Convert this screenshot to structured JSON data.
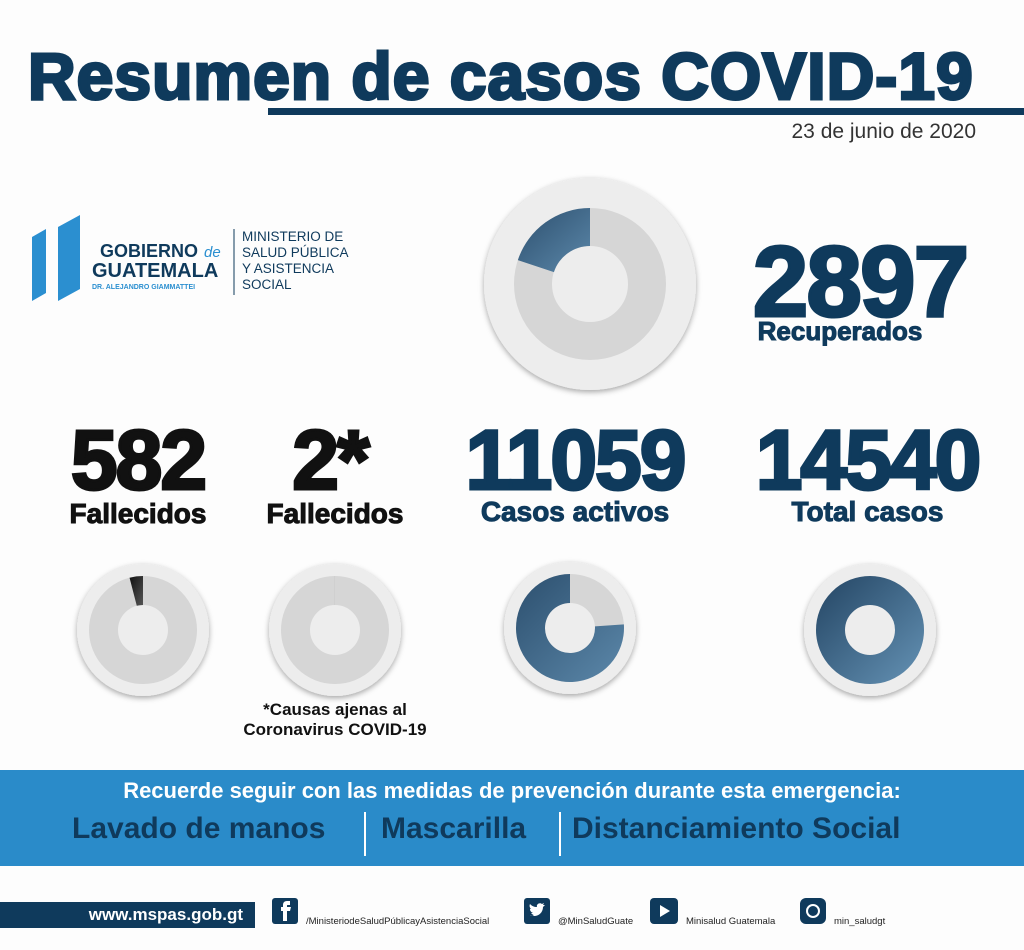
{
  "header": {
    "title": "Resumen de casos COVID-19",
    "date": "23 de junio de 2020"
  },
  "logo": {
    "gobierno": "GOBIERNO",
    "de": "de",
    "guatemala": "GUATEMALA",
    "president": "DR. ALEJANDRO GIAMMATTEI",
    "ministry": [
      "MINISTERIO DE",
      "SALUD PÚBLICA",
      "Y ASISTENCIA",
      "SOCIAL"
    ]
  },
  "stats": [
    {
      "value": 2897,
      "label": "Recuperados"
    },
    {
      "value": 582,
      "label": "Fallecidos"
    },
    {
      "value": 2,
      "value_label": "2*",
      "label": "Fallecidos"
    },
    {
      "value": 11059,
      "label": "Casos activos"
    },
    {
      "value": 14540,
      "label": "Total casos"
    }
  ],
  "footnote": [
    "*Causas ajenas al",
    "Coronavirus COVID-19"
  ],
  "banner": {
    "text": "Recuerde seguir con las medidas de prevención durante esta emergencia:",
    "items": [
      "Lavado de manos",
      "Mascarilla",
      "Distanciamiento Social"
    ]
  },
  "footer": {
    "website": "www.mspas.gob.gt",
    "social": [
      "/MinisteriodeSaludPúblicayAsistenciaSocial",
      "@MinSaludGuate",
      "Minisalud Guatemala",
      "min_saludgt"
    ]
  }
}
